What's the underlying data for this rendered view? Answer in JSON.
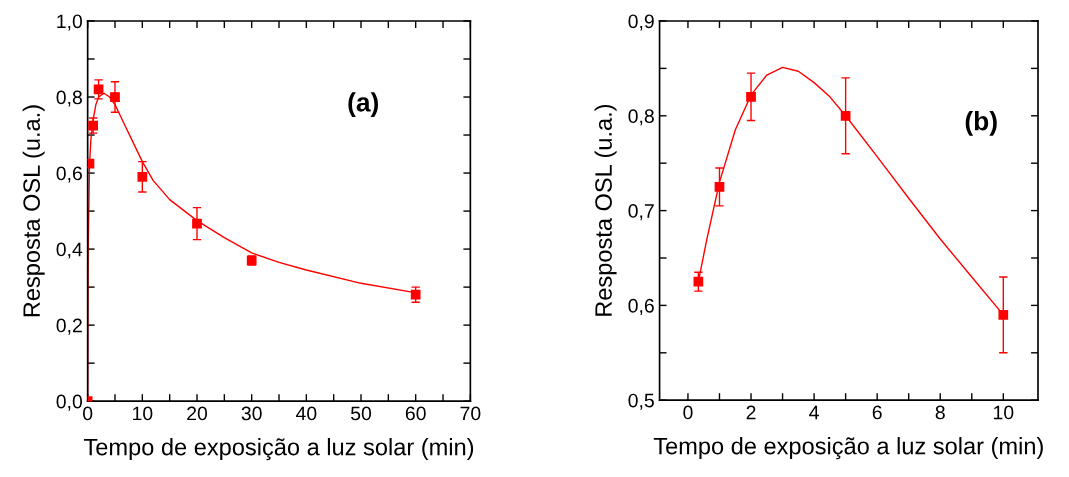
{
  "chart_data": [
    {
      "type": "scatter",
      "xlabel": "Tempo de exposição a luz solar (min)",
      "ylabel": "Resposta OSL (u.a.)",
      "annotations": [
        "(a)"
      ],
      "series": [
        {
          "color": "#ff0000",
          "marker": "square",
          "x": [
            0,
            0.33,
            1,
            2,
            5,
            10,
            20,
            30,
            60
          ],
          "values": [
            0,
            0.625,
            0.725,
            0.82,
            0.8,
            0.59,
            0.467,
            0.37,
            0.28
          ],
          "errors": [
            null,
            0.01,
            0.02,
            0.025,
            0.04,
            0.04,
            0.042,
            0.012,
            0.02
          ]
        },
        {
          "type": "line",
          "color": "#ff0000",
          "line_style": "solid",
          "x": [
            0,
            0.1,
            0.33,
            0.6,
            1,
            1.5,
            2,
            3,
            4,
            5,
            6,
            7,
            8,
            10,
            12,
            15,
            20,
            25,
            30,
            35,
            40,
            50,
            60
          ],
          "values": [
            0,
            0.4,
            0.62,
            0.69,
            0.74,
            0.78,
            0.8,
            0.81,
            0.8,
            0.78,
            0.75,
            0.72,
            0.69,
            0.63,
            0.58,
            0.53,
            0.475,
            0.43,
            0.39,
            0.365,
            0.345,
            0.31,
            0.285
          ]
        }
      ],
      "xlim": [
        0,
        70
      ],
      "xticks": [
        0,
        {
          "value": 5,
          "label": null
        },
        10,
        {
          "value": 15,
          "label": null
        },
        20,
        {
          "value": 25,
          "label": null
        },
        30,
        {
          "value": 35,
          "label": null
        },
        40,
        {
          "value": 45,
          "label": null
        },
        50,
        {
          "value": 55,
          "label": null
        },
        60,
        {
          "value": 65,
          "label": null
        },
        70
      ],
      "ylim": [
        0,
        1
      ],
      "yticks": [
        {
          "value": 0,
          "label": "0,0"
        },
        {
          "value": 0.1,
          "label": null
        },
        {
          "value": 0.2,
          "label": "0,2"
        },
        {
          "value": 0.3,
          "label": null
        },
        {
          "value": 0.4,
          "label": "0,4"
        },
        {
          "value": 0.5,
          "label": null
        },
        {
          "value": 0.6,
          "label": "0,6"
        },
        {
          "value": 0.7,
          "label": null
        },
        {
          "value": 0.8,
          "label": "0,8"
        },
        {
          "value": 0.9,
          "label": null
        },
        {
          "value": 1.0,
          "label": "1,0"
        }
      ],
      "grid": false
    },
    {
      "type": "scatter",
      "xlabel": "Tempo de exposição a luz solar (min)",
      "ylabel": "Resposta OSL (u.a.)",
      "annotations": [
        "(b)"
      ],
      "series": [
        {
          "color": "#ff0000",
          "marker": "square",
          "x": [
            0.33,
            1,
            2,
            5,
            10
          ],
          "values": [
            0.625,
            0.725,
            0.82,
            0.8,
            0.59
          ],
          "errors": [
            0.01,
            0.02,
            0.025,
            0.04,
            0.04
          ]
        },
        {
          "type": "line",
          "color": "#ff0000",
          "line_style": "solid",
          "x": [
            0.33,
            0.6,
            1,
            1.5,
            2,
            2.5,
            3,
            3.5,
            4,
            4.5,
            5,
            6,
            7,
            8,
            9,
            10
          ],
          "values": [
            0.625,
            0.67,
            0.73,
            0.785,
            0.822,
            0.843,
            0.851,
            0.847,
            0.835,
            0.82,
            0.8,
            0.757,
            0.713,
            0.67,
            0.63,
            0.59
          ]
        }
      ],
      "xlim": [
        -0.9,
        11.1
      ],
      "xticks": [
        0,
        {
          "value": 1,
          "label": null
        },
        2,
        {
          "value": 3,
          "label": null
        },
        4,
        {
          "value": 5,
          "label": null
        },
        6,
        {
          "value": 7,
          "label": null
        },
        8,
        {
          "value": 9,
          "label": null
        },
        10
      ],
      "ylim": [
        0.5,
        0.9
      ],
      "yticks": [
        {
          "value": 0.5,
          "label": "0,5"
        },
        {
          "value": 0.55,
          "label": null
        },
        {
          "value": 0.6,
          "label": "0,6"
        },
        {
          "value": 0.65,
          "label": null
        },
        {
          "value": 0.7,
          "label": "0,7"
        },
        {
          "value": 0.75,
          "label": null
        },
        {
          "value": 0.8,
          "label": "0,8"
        },
        {
          "value": 0.85,
          "label": null
        },
        {
          "value": 0.9,
          "label": "0,9"
        }
      ],
      "grid": false
    }
  ]
}
